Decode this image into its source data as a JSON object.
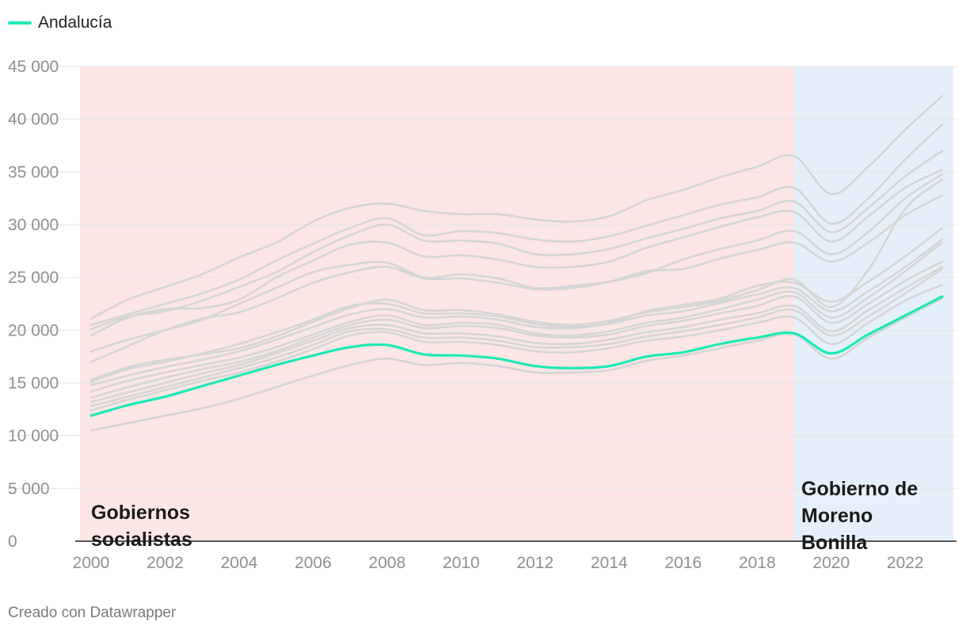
{
  "legend": {
    "label": "Andalucía",
    "color": "#1de9b6"
  },
  "footer": "Creado con Datawrapper",
  "colors": {
    "highlight": "#1de9b6",
    "context": "#d5d5d5",
    "band_socialist": "#fde6e6",
    "band_moreno": "#e6f0fa"
  },
  "chart_data": {
    "type": "line",
    "title": "",
    "xlabel": "",
    "ylabel": "",
    "xlim": [
      2000,
      2023
    ],
    "ylim": [
      0,
      45000
    ],
    "grid": true,
    "legend_position": "top-left",
    "x_ticks": [
      "2000",
      "2002",
      "2004",
      "2006",
      "2008",
      "2010",
      "2012",
      "2014",
      "2016",
      "2018",
      "2020",
      "2022"
    ],
    "y_ticks": [
      "0",
      "5 000",
      "10 000",
      "15 000",
      "20 000",
      "25 000",
      "30 000",
      "35 000",
      "40 000",
      "45 000"
    ],
    "x": [
      2000,
      2001,
      2002,
      2003,
      2004,
      2005,
      2006,
      2007,
      2008,
      2009,
      2010,
      2011,
      2012,
      2013,
      2014,
      2015,
      2016,
      2017,
      2018,
      2019,
      2020,
      2021,
      2022,
      2023
    ],
    "bands": [
      {
        "label": "Gobiernos socialistas",
        "label_lines": [
          "Gobiernos",
          "socialistas"
        ],
        "from": 1999.7,
        "to": 2019,
        "color": "#fde6e6"
      },
      {
        "label": "Gobierno de Moreno Bonilla",
        "label_lines": [
          "Gobierno de",
          "Moreno",
          "Bonilla"
        ],
        "from": 2019,
        "to": 2023.3,
        "color": "#e6f0fa"
      }
    ],
    "series": [
      {
        "name": "Andalucía",
        "highlight": true,
        "values": [
          11900,
          12900,
          13700,
          14700,
          15700,
          16700,
          17600,
          18400,
          18600,
          17700,
          17600,
          17300,
          16600,
          16400,
          16600,
          17500,
          17900,
          18700,
          19300,
          19700,
          17800,
          19600,
          21400,
          23200
        ]
      },
      {
        "highlight": false,
        "values": [
          21100,
          22900,
          24100,
          25300,
          26900,
          28300,
          30300,
          31600,
          32000,
          31300,
          31000,
          31000,
          30500,
          30300,
          30800,
          32300,
          33300,
          34500,
          35500,
          36500,
          32900,
          35500,
          39000,
          42200
        ]
      },
      {
        "highlight": false,
        "values": [
          20500,
          21500,
          22500,
          23500,
          24800,
          26600,
          28200,
          29700,
          30600,
          29000,
          29400,
          29200,
          28600,
          28400,
          28900,
          29900,
          30900,
          31900,
          32600,
          33500,
          30100,
          32500,
          36200,
          39500
        ]
      },
      {
        "highlight": false,
        "values": [
          20100,
          21300,
          21800,
          22800,
          24100,
          25500,
          27400,
          29000,
          30000,
          28500,
          28500,
          28200,
          27200,
          27200,
          27700,
          28700,
          29600,
          30600,
          31300,
          32200,
          29300,
          31600,
          34600,
          37000
        ]
      },
      {
        "highlight": false,
        "values": [
          19500,
          21200,
          22000,
          22100,
          22900,
          25000,
          26600,
          28100,
          28300,
          27000,
          27100,
          26700,
          26000,
          26000,
          26500,
          27800,
          28800,
          29800,
          30700,
          31200,
          28400,
          30800,
          33500,
          35200
        ]
      },
      {
        "highlight": false,
        "values": [
          18000,
          19100,
          20000,
          21000,
          22500,
          24000,
          25500,
          26200,
          26400,
          25000,
          25300,
          24900,
          24000,
          24200,
          24600,
          25400,
          26700,
          27700,
          28500,
          29400,
          27200,
          29300,
          32500,
          34800
        ]
      },
      {
        "highlight": false,
        "values": [
          17000,
          18500,
          20000,
          21100,
          21700,
          23000,
          24500,
          25500,
          26000,
          24900,
          24900,
          24500,
          23900,
          24000,
          24600,
          25600,
          25800,
          26800,
          27600,
          28300,
          26500,
          28300,
          30900,
          32800
        ]
      },
      {
        "highlight": false,
        "values": [
          15300,
          16500,
          17200,
          17700,
          18300,
          19400,
          20800,
          22100,
          22900,
          21900,
          21900,
          21500,
          20800,
          20500,
          20900,
          21700,
          22200,
          22800,
          23800,
          24800,
          22200,
          25700,
          31500,
          34300
        ]
      },
      {
        "highlight": false,
        "values": [
          15100,
          16300,
          17000,
          17800,
          18700,
          19800,
          21000,
          22300,
          22500,
          21600,
          21600,
          21300,
          20600,
          20300,
          20700,
          21800,
          22400,
          23000,
          24200,
          24500,
          22700,
          24600,
          27000,
          29700
        ]
      },
      {
        "highlight": false,
        "values": [
          14800,
          15700,
          16500,
          17200,
          18000,
          19100,
          20300,
          21500,
          22000,
          21200,
          21300,
          21000,
          20300,
          20200,
          20600,
          21400,
          21800,
          22600,
          23400,
          24000,
          21800,
          23700,
          26000,
          28600
        ]
      },
      {
        "highlight": false,
        "values": [
          14200,
          15200,
          16000,
          16700,
          17400,
          18400,
          19600,
          20800,
          21400,
          20500,
          20700,
          20500,
          19700,
          19500,
          19900,
          20700,
          21200,
          22000,
          22900,
          23600,
          21200,
          23100,
          25600,
          28300
        ]
      },
      {
        "highlight": false,
        "values": [
          13600,
          14600,
          15500,
          16300,
          17000,
          18000,
          19300,
          20500,
          21000,
          20200,
          20400,
          20200,
          19500,
          19300,
          19600,
          20400,
          20900,
          21600,
          22300,
          23200,
          20700,
          22500,
          24700,
          26500
        ]
      },
      {
        "highlight": false,
        "values": [
          13200,
          14100,
          15000,
          15900,
          16700,
          17800,
          19000,
          20200,
          20500,
          19700,
          19700,
          19400,
          18800,
          18700,
          19100,
          19800,
          20300,
          21000,
          21600,
          22300,
          19900,
          21900,
          24000,
          26000
        ]
      },
      {
        "highlight": false,
        "values": [
          12800,
          13700,
          14600,
          15500,
          16400,
          17400,
          18600,
          19900,
          20100,
          19300,
          19300,
          19000,
          18400,
          18400,
          18700,
          19400,
          19900,
          20500,
          21200,
          21900,
          19500,
          21300,
          23500,
          25800
        ]
      },
      {
        "highlight": false,
        "values": [
          12400,
          13400,
          14300,
          15200,
          16000,
          17000,
          18200,
          19500,
          19800,
          18900,
          18900,
          18600,
          18000,
          17900,
          18300,
          19000,
          19400,
          20000,
          20700,
          21200,
          18700,
          20700,
          22800,
          24300
        ]
      },
      {
        "highlight": false,
        "values": [
          10500,
          11200,
          11900,
          12600,
          13500,
          14600,
          15700,
          16700,
          17300,
          16700,
          16900,
          16600,
          16000,
          16000,
          16200,
          17100,
          17600,
          18300,
          19000,
          19600,
          17300,
          19300,
          21200,
          23000
        ]
      }
    ]
  }
}
